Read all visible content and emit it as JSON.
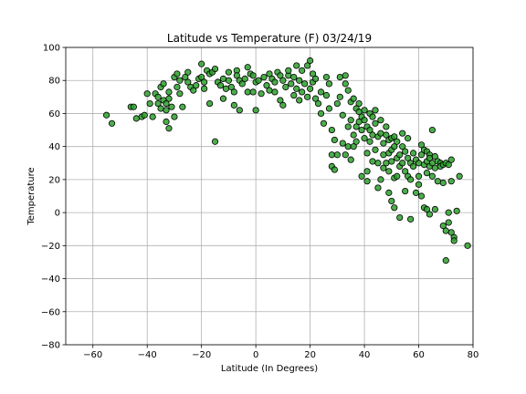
{
  "chart_data": {
    "type": "scatter",
    "title": "Latitude vs Temperature (F) 03/24/19",
    "xlabel": "Latitude (In Degrees)",
    "ylabel": "Temperature",
    "xlim": [
      -70,
      80
    ],
    "ylim": [
      -80,
      100
    ],
    "xticks": [
      -60,
      -40,
      -20,
      0,
      20,
      40,
      60,
      80
    ],
    "yticks": [
      -80,
      -60,
      -40,
      -20,
      0,
      20,
      40,
      60,
      80,
      100
    ],
    "grid": true,
    "marker_color": "#2ca02c",
    "marker_edge_color": "#000000",
    "points": [
      [
        -55,
        59
      ],
      [
        -53,
        54
      ],
      [
        -46,
        64
      ],
      [
        -45,
        64
      ],
      [
        -44,
        57
      ],
      [
        -42,
        58
      ],
      [
        -41,
        59
      ],
      [
        -40,
        72
      ],
      [
        -39,
        66
      ],
      [
        -38,
        58
      ],
      [
        -37,
        72
      ],
      [
        -36,
        70
      ],
      [
        -36,
        66
      ],
      [
        -35,
        63
      ],
      [
        -35,
        76
      ],
      [
        -34,
        78
      ],
      [
        -34,
        68
      ],
      [
        -33,
        66
      ],
      [
        -33,
        62
      ],
      [
        -33,
        55
      ],
      [
        -32,
        51
      ],
      [
        -32,
        69
      ],
      [
        -32,
        73
      ],
      [
        -31,
        64
      ],
      [
        -30,
        58
      ],
      [
        -30,
        82
      ],
      [
        -29,
        84
      ],
      [
        -29,
        76
      ],
      [
        -28,
        80
      ],
      [
        -28,
        72
      ],
      [
        -27,
        64
      ],
      [
        -26,
        82
      ],
      [
        -25,
        79
      ],
      [
        -25,
        85
      ],
      [
        -24,
        76
      ],
      [
        -23,
        74
      ],
      [
        -22,
        77
      ],
      [
        -21,
        81
      ],
      [
        -20,
        82
      ],
      [
        -20,
        90
      ],
      [
        -19,
        79
      ],
      [
        -19,
        75
      ],
      [
        -18,
        86
      ],
      [
        -17,
        84
      ],
      [
        -17,
        66
      ],
      [
        -16,
        85
      ],
      [
        -15,
        87
      ],
      [
        -15,
        43
      ],
      [
        -14,
        79
      ],
      [
        -13,
        77
      ],
      [
        -12,
        81
      ],
      [
        -12,
        69
      ],
      [
        -11,
        75
      ],
      [
        -10,
        80
      ],
      [
        -10,
        85
      ],
      [
        -9,
        76
      ],
      [
        -8,
        65
      ],
      [
        -8,
        73
      ],
      [
        -7,
        86
      ],
      [
        -7,
        83
      ],
      [
        -6,
        80
      ],
      [
        -6,
        62
      ],
      [
        -5,
        78
      ],
      [
        -4,
        81
      ],
      [
        -3,
        73
      ],
      [
        -3,
        88
      ],
      [
        -2,
        84
      ],
      [
        -1,
        83
      ],
      [
        -1,
        73
      ],
      [
        0,
        79
      ],
      [
        0,
        62
      ],
      [
        1,
        80
      ],
      [
        2,
        72
      ],
      [
        3,
        82
      ],
      [
        4,
        77
      ],
      [
        5,
        84
      ],
      [
        5,
        74
      ],
      [
        6,
        81
      ],
      [
        7,
        79
      ],
      [
        7,
        73
      ],
      [
        8,
        85
      ],
      [
        9,
        68
      ],
      [
        9,
        83
      ],
      [
        10,
        80
      ],
      [
        10,
        65
      ],
      [
        11,
        76
      ],
      [
        12,
        83
      ],
      [
        12,
        86
      ],
      [
        13,
        78
      ],
      [
        14,
        82
      ],
      [
        14,
        71
      ],
      [
        15,
        75
      ],
      [
        15,
        89
      ],
      [
        16,
        80
      ],
      [
        16,
        68
      ],
      [
        17,
        73
      ],
      [
        17,
        86
      ],
      [
        18,
        78
      ],
      [
        19,
        89
      ],
      [
        19,
        70
      ],
      [
        20,
        92
      ],
      [
        20,
        75
      ],
      [
        21,
        84
      ],
      [
        21,
        79
      ],
      [
        22,
        69
      ],
      [
        22,
        81
      ],
      [
        23,
        66
      ],
      [
        24,
        73
      ],
      [
        24,
        60
      ],
      [
        25,
        54
      ],
      [
        26,
        82
      ],
      [
        26,
        71
      ],
      [
        27,
        63
      ],
      [
        27,
        78
      ],
      [
        28,
        50
      ],
      [
        28,
        35
      ],
      [
        28,
        28
      ],
      [
        29,
        26
      ],
      [
        29,
        44
      ],
      [
        30,
        66
      ],
      [
        30,
        35
      ],
      [
        31,
        82
      ],
      [
        31,
        70
      ],
      [
        32,
        42
      ],
      [
        32,
        59
      ],
      [
        33,
        83
      ],
      [
        33,
        78
      ],
      [
        33,
        35
      ],
      [
        34,
        52
      ],
      [
        34,
        40
      ],
      [
        34,
        74
      ],
      [
        35,
        67
      ],
      [
        35,
        56
      ],
      [
        35,
        32
      ],
      [
        36,
        47
      ],
      [
        36,
        40
      ],
      [
        36,
        69
      ],
      [
        37,
        43
      ],
      [
        37,
        52
      ],
      [
        37,
        63
      ],
      [
        38,
        61
      ],
      [
        38,
        66
      ],
      [
        38,
        55
      ],
      [
        39,
        58
      ],
      [
        39,
        50
      ],
      [
        39,
        22
      ],
      [
        40,
        62
      ],
      [
        40,
        56
      ],
      [
        40,
        45
      ],
      [
        41,
        52
      ],
      [
        41,
        36
      ],
      [
        41,
        25
      ],
      [
        41,
        19
      ],
      [
        42,
        60
      ],
      [
        42,
        50
      ],
      [
        42,
        43
      ],
      [
        43,
        58
      ],
      [
        43,
        47
      ],
      [
        43,
        31
      ],
      [
        44,
        62
      ],
      [
        44,
        54
      ],
      [
        44,
        38
      ],
      [
        45,
        46
      ],
      [
        45,
        30
      ],
      [
        45,
        15
      ],
      [
        46,
        56
      ],
      [
        46,
        48
      ],
      [
        46,
        20
      ],
      [
        47,
        42
      ],
      [
        47,
        35
      ],
      [
        47,
        27
      ],
      [
        48,
        47
      ],
      [
        48,
        52
      ],
      [
        48,
        30
      ],
      [
        49,
        44
      ],
      [
        49,
        36
      ],
      [
        49,
        25
      ],
      [
        49,
        12
      ],
      [
        50,
        45
      ],
      [
        50,
        38
      ],
      [
        50,
        31
      ],
      [
        50,
        7
      ],
      [
        51,
        46
      ],
      [
        51,
        40
      ],
      [
        51,
        21
      ],
      [
        51,
        3
      ],
      [
        52,
        43
      ],
      [
        52,
        33
      ],
      [
        52,
        22
      ],
      [
        53,
        35
      ],
      [
        53,
        28
      ],
      [
        53,
        -3
      ],
      [
        54,
        48
      ],
      [
        54,
        40
      ],
      [
        54,
        30
      ],
      [
        55,
        37
      ],
      [
        55,
        25
      ],
      [
        55,
        13
      ],
      [
        56,
        45
      ],
      [
        56,
        33
      ],
      [
        56,
        22
      ],
      [
        57,
        30
      ],
      [
        57,
        20
      ],
      [
        57,
        -4
      ],
      [
        58,
        36
      ],
      [
        58,
        28
      ],
      [
        59,
        32
      ],
      [
        59,
        12
      ],
      [
        60,
        30
      ],
      [
        60,
        22
      ],
      [
        60,
        17
      ],
      [
        61,
        41
      ],
      [
        61,
        35
      ],
      [
        61,
        10
      ],
      [
        62,
        38
      ],
      [
        62,
        29
      ],
      [
        62,
        3
      ],
      [
        63,
        37
      ],
      [
        63,
        31
      ],
      [
        63,
        24
      ],
      [
        63,
        2
      ],
      [
        64,
        35
      ],
      [
        64,
        33
      ],
      [
        64,
        28
      ],
      [
        64,
        -1
      ],
      [
        65,
        50
      ],
      [
        65,
        30
      ],
      [
        65,
        22
      ],
      [
        66,
        34
      ],
      [
        66,
        27
      ],
      [
        66,
        2
      ],
      [
        67,
        31
      ],
      [
        67,
        19
      ],
      [
        68,
        30
      ],
      [
        68,
        28
      ],
      [
        69,
        29
      ],
      [
        69,
        18
      ],
      [
        69,
        -8
      ],
      [
        70,
        30
      ],
      [
        70,
        -11
      ],
      [
        70,
        -29
      ],
      [
        71,
        29
      ],
      [
        71,
        0
      ],
      [
        71,
        -6
      ],
      [
        72,
        32
      ],
      [
        72,
        19
      ],
      [
        72,
        -12
      ],
      [
        73,
        -15
      ],
      [
        73,
        -17
      ],
      [
        74,
        1
      ],
      [
        75,
        22
      ],
      [
        78,
        -20
      ]
    ]
  }
}
